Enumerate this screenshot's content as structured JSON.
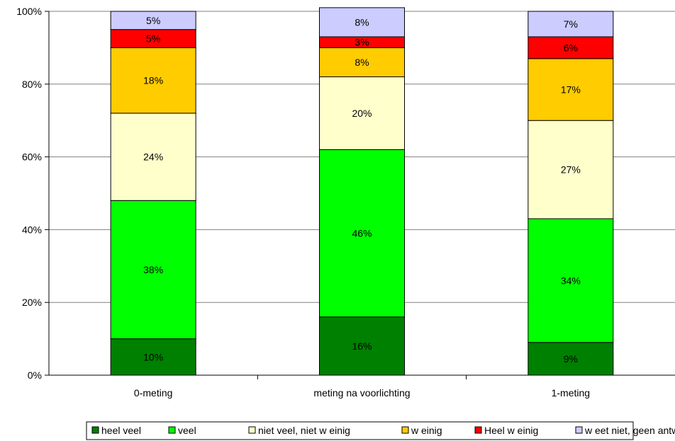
{
  "chart_data": {
    "type": "bar",
    "stacked": true,
    "normalized": true,
    "categories": [
      "0-meting",
      "meting na voorlichting",
      "1-meting"
    ],
    "series": [
      {
        "name": "heel veel",
        "color": "#008000",
        "values": [
          10,
          16,
          9
        ],
        "labels": [
          "10%",
          "16%",
          "9%"
        ]
      },
      {
        "name": "veel",
        "color": "#00ff00",
        "values": [
          38,
          46,
          34
        ],
        "labels": [
          "38%",
          "46%",
          "34%"
        ]
      },
      {
        "name": "niet veel, niet w einig",
        "color": "#ffffcc",
        "values": [
          24,
          20,
          27
        ],
        "labels": [
          "24%",
          "20%",
          "27%"
        ]
      },
      {
        "name": "w einig",
        "color": "#ffcc00",
        "values": [
          18,
          8,
          17
        ],
        "labels": [
          "18%",
          "8%",
          "17%"
        ]
      },
      {
        "name": "Heel w einig",
        "color": "#ff0000",
        "values": [
          5,
          3,
          6
        ],
        "labels": [
          "5%",
          "3%",
          "6%"
        ]
      },
      {
        "name": "w eet niet, geen antw oord",
        "color": "#ccccff",
        "values": [
          5,
          8,
          7
        ],
        "labels": [
          "5%",
          "8%",
          "7%"
        ]
      }
    ],
    "y_ticks": [
      "0%",
      "20%",
      "40%",
      "60%",
      "80%",
      "100%"
    ],
    "ylim": [
      0,
      100
    ],
    "grid": true,
    "legend": "bottom"
  }
}
